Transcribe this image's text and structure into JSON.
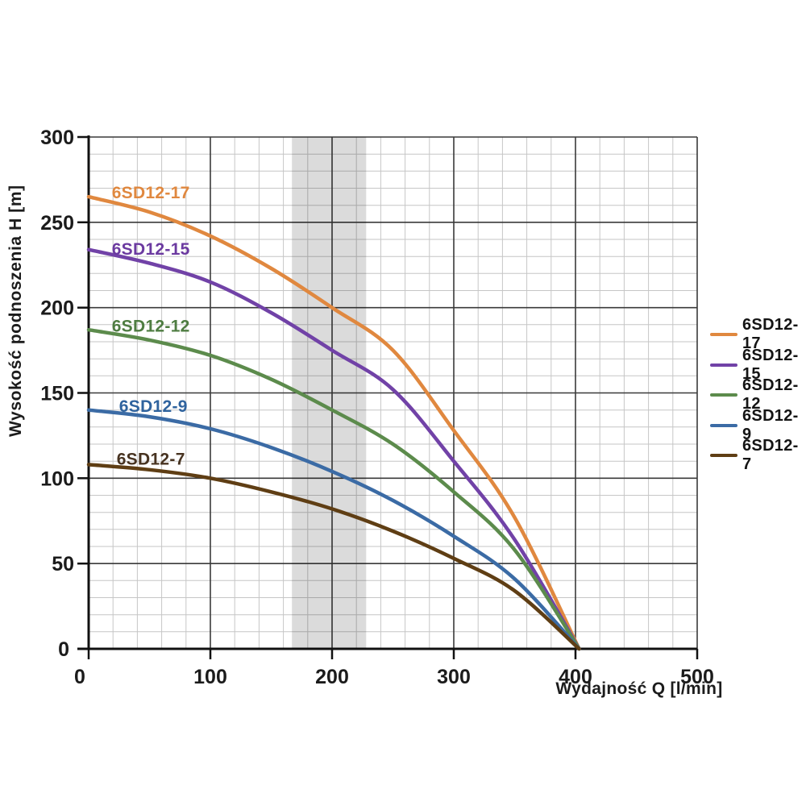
{
  "chart_data": {
    "type": "line",
    "title": "",
    "xlabel": "Wydajność Q [l/min]",
    "ylabel": "Wysokość podnoszenia H [m]",
    "xlim": [
      0,
      500
    ],
    "ylim": [
      0,
      300
    ],
    "x_major_step": 100,
    "x_minor_step": 20,
    "y_major_step": 50,
    "y_minor_step": 10,
    "x_ticks": [
      "0",
      "100",
      "200",
      "300",
      "400",
      "500"
    ],
    "y_ticks": [
      "0",
      "50",
      "100",
      "150",
      "200",
      "250",
      "300"
    ],
    "grid": true,
    "legend_position": "right",
    "band": {
      "x0": 167,
      "x1": 228,
      "overlay": "rgba(0,0,0,0.14)"
    },
    "series": [
      {
        "name": "6SD12-17",
        "color": "#E0883F",
        "label_color": "#E0883F",
        "label_at": [
          19,
          264
        ],
        "points": [
          [
            0,
            265
          ],
          [
            50,
            256
          ],
          [
            100,
            242
          ],
          [
            150,
            223
          ],
          [
            200,
            200
          ],
          [
            250,
            175
          ],
          [
            300,
            128
          ],
          [
            350,
            77
          ],
          [
            403,
            0
          ]
        ]
      },
      {
        "name": "6SD12-15",
        "color": "#7142A7",
        "label_color": "#6B3AA0",
        "label_at": [
          19,
          231
        ],
        "points": [
          [
            0,
            234
          ],
          [
            50,
            226
          ],
          [
            100,
            215
          ],
          [
            150,
            197
          ],
          [
            200,
            175
          ],
          [
            250,
            152
          ],
          [
            300,
            110
          ],
          [
            350,
            64
          ],
          [
            403,
            0
          ]
        ]
      },
      {
        "name": "6SD12-12",
        "color": "#5C8B4C",
        "label_color": "#4E7C41",
        "label_at": [
          19,
          186
        ],
        "points": [
          [
            0,
            187
          ],
          [
            50,
            181
          ],
          [
            100,
            172
          ],
          [
            150,
            158
          ],
          [
            200,
            140
          ],
          [
            250,
            120
          ],
          [
            300,
            92
          ],
          [
            350,
            58
          ],
          [
            403,
            0
          ]
        ]
      },
      {
        "name": "6SD12-9",
        "color": "#3B6BA5",
        "label_color": "#2F639E",
        "label_at": [
          25,
          139
        ],
        "points": [
          [
            0,
            140
          ],
          [
            50,
            136
          ],
          [
            100,
            129
          ],
          [
            150,
            118
          ],
          [
            200,
            104
          ],
          [
            250,
            87
          ],
          [
            300,
            66
          ],
          [
            350,
            41
          ],
          [
            403,
            0
          ]
        ]
      },
      {
        "name": "6SD12-7",
        "color": "#5F3E14",
        "label_color": "#473321",
        "label_at": [
          23,
          108
        ],
        "points": [
          [
            0,
            108
          ],
          [
            50,
            105
          ],
          [
            100,
            100
          ],
          [
            150,
            92
          ],
          [
            200,
            82
          ],
          [
            250,
            69
          ],
          [
            300,
            53
          ],
          [
            350,
            34
          ],
          [
            403,
            0
          ]
        ]
      }
    ],
    "colors": {
      "grid_minor": "#c6c6c6",
      "grid_major": "#3a3a3a",
      "axis": "#111111",
      "tick_label": "#1b1b1b"
    }
  }
}
